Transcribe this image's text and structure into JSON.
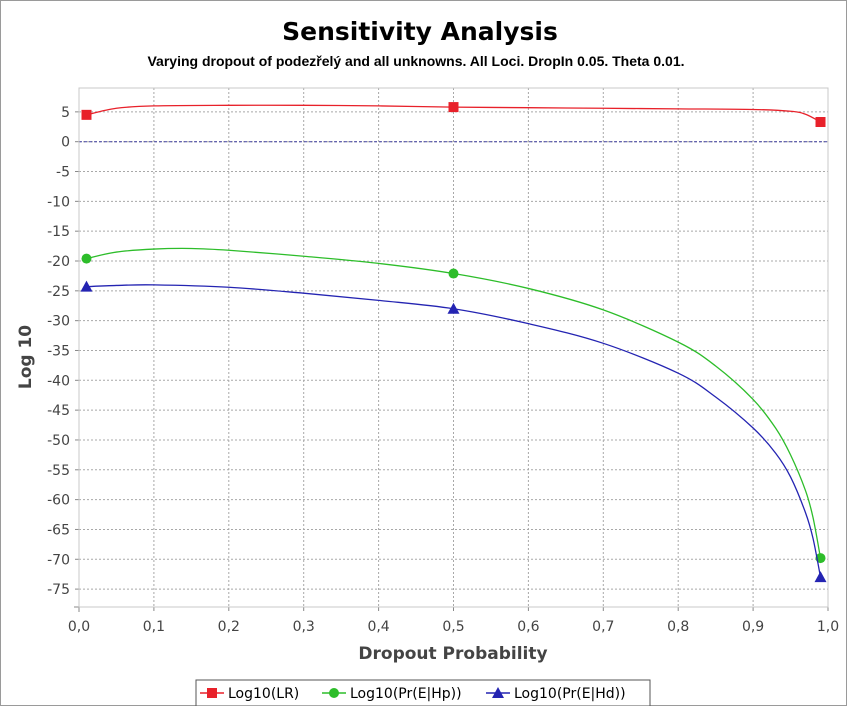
{
  "chart_data": {
    "type": "line",
    "title": "Sensitivity Analysis",
    "subtitle": "Varying dropout of podezřelý and all unknowns. All Loci. DropIn 0.05. Theta 0.01.",
    "xlabel": "Dropout Probability",
    "ylabel": "Log 10",
    "xlim": [
      0,
      1
    ],
    "ylim": [
      -78,
      9
    ],
    "x_ticks": [
      0,
      0.1,
      0.2,
      0.3,
      0.4,
      0.5,
      0.6,
      0.7,
      0.8,
      0.9,
      1.0
    ],
    "x_tick_labels": [
      "0,0",
      "0,1",
      "0,2",
      "0,3",
      "0,4",
      "0,5",
      "0,6",
      "0,7",
      "0,8",
      "0,9",
      "1,0"
    ],
    "y_ticks": [
      5,
      0,
      -5,
      -10,
      -15,
      -20,
      -25,
      -30,
      -35,
      -40,
      -45,
      -50,
      -55,
      -60,
      -65,
      -70,
      -75
    ],
    "y_tick_labels": [
      "5",
      "0",
      "-5",
      "-10",
      "-15",
      "-20",
      "-25",
      "-30",
      "-35",
      "-40",
      "-45",
      "-50",
      "-55",
      "-60",
      "-65",
      "-70",
      "-75"
    ],
    "grid": true,
    "legend_position": "bottom",
    "series": [
      {
        "name": "Log10(LR)",
        "color": "#e8212a",
        "marker": "square",
        "points": [
          [
            0.01,
            4.5
          ],
          [
            0.5,
            5.8
          ],
          [
            0.99,
            3.3
          ]
        ],
        "curve": [
          [
            0.01,
            4.5
          ],
          [
            0.05,
            5.6
          ],
          [
            0.1,
            6.0
          ],
          [
            0.2,
            6.1
          ],
          [
            0.3,
            6.1
          ],
          [
            0.4,
            6.0
          ],
          [
            0.5,
            5.8
          ],
          [
            0.6,
            5.7
          ],
          [
            0.7,
            5.6
          ],
          [
            0.8,
            5.5
          ],
          [
            0.9,
            5.4
          ],
          [
            0.95,
            5.1
          ],
          [
            0.97,
            4.6
          ],
          [
            0.99,
            3.3
          ]
        ]
      },
      {
        "name": "Log10(Pr(E|Hp))",
        "color": "#2dbd2a",
        "marker": "circle",
        "points": [
          [
            0.01,
            -19.6
          ],
          [
            0.5,
            -22.1
          ],
          [
            0.99,
            -69.8
          ]
        ],
        "curve": [
          [
            0.01,
            -19.6
          ],
          [
            0.05,
            -18.5
          ],
          [
            0.1,
            -18.0
          ],
          [
            0.15,
            -17.9
          ],
          [
            0.2,
            -18.2
          ],
          [
            0.3,
            -19.2
          ],
          [
            0.4,
            -20.4
          ],
          [
            0.5,
            -22.1
          ],
          [
            0.6,
            -24.6
          ],
          [
            0.7,
            -28.2
          ],
          [
            0.8,
            -33.6
          ],
          [
            0.85,
            -37.6
          ],
          [
            0.9,
            -43.2
          ],
          [
            0.93,
            -48.0
          ],
          [
            0.95,
            -52.5
          ],
          [
            0.97,
            -58.5
          ],
          [
            0.98,
            -63.0
          ],
          [
            0.99,
            -69.8
          ]
        ]
      },
      {
        "name": "Log10(Pr(E|Hd))",
        "color": "#2424b2",
        "marker": "triangle",
        "points": [
          [
            0.01,
            -24.3
          ],
          [
            0.5,
            -28.0
          ],
          [
            0.99,
            -73.0
          ]
        ],
        "curve": [
          [
            0.01,
            -24.3
          ],
          [
            0.05,
            -24.1
          ],
          [
            0.1,
            -24.0
          ],
          [
            0.2,
            -24.4
          ],
          [
            0.3,
            -25.4
          ],
          [
            0.4,
            -26.6
          ],
          [
            0.5,
            -28.0
          ],
          [
            0.6,
            -30.5
          ],
          [
            0.7,
            -33.8
          ],
          [
            0.8,
            -38.8
          ],
          [
            0.85,
            -42.8
          ],
          [
            0.9,
            -48.0
          ],
          [
            0.93,
            -52.2
          ],
          [
            0.95,
            -56.2
          ],
          [
            0.97,
            -62.2
          ],
          [
            0.98,
            -66.5
          ],
          [
            0.99,
            -73.0
          ]
        ]
      }
    ]
  }
}
